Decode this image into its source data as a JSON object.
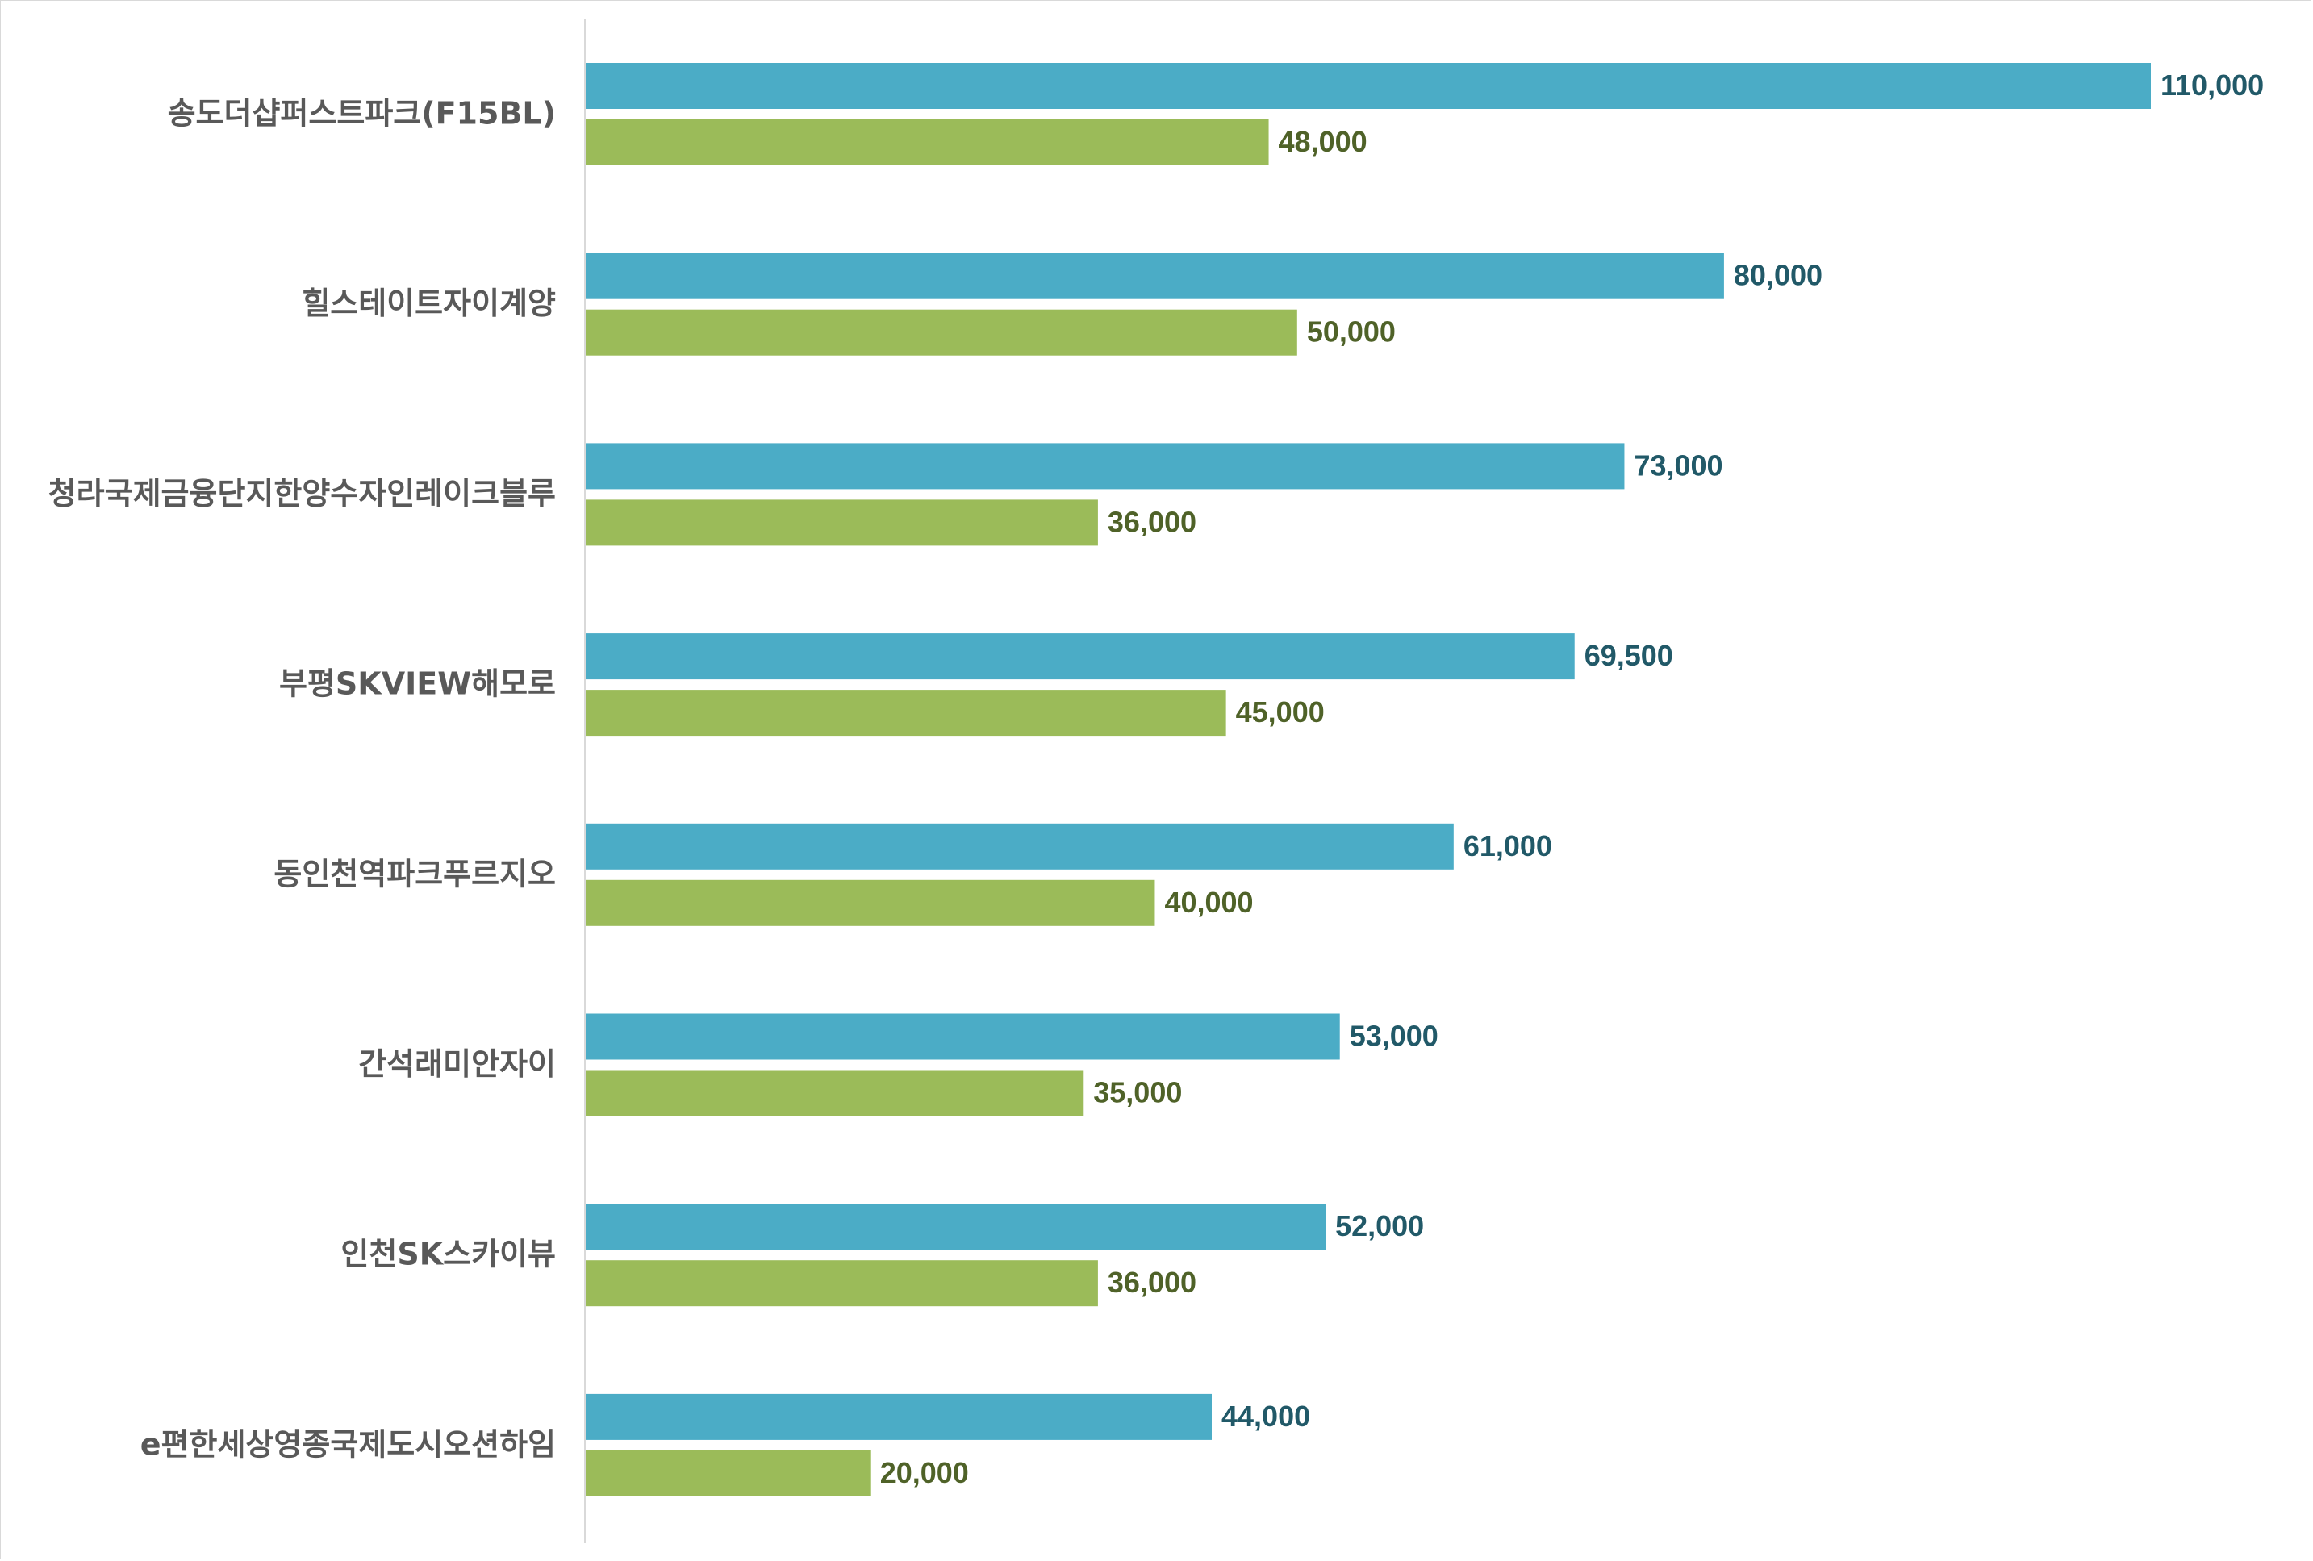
{
  "colors": {
    "series_a_bar": "#4bacc6",
    "series_b_bar": "#9bbb59",
    "series_a_label": "#215968",
    "series_b_label": "#4f6228",
    "axis": "#d9d9d9",
    "category_text": "#595959"
  },
  "chart_data": {
    "type": "bar",
    "orientation": "horizontal",
    "title": "",
    "xlabel": "",
    "ylabel": "",
    "xlim": [
      0,
      110000
    ],
    "grid": false,
    "legend": "none",
    "categories": [
      "송도더샵퍼스트파크(F15BL)",
      "힐스테이트자이계양",
      "청라국제금융단지한양수자인레이크블루",
      "부평SKVIEW해모로",
      "동인천역파크푸르지오",
      "간석래미안자이",
      "인천SK스카이뷰",
      "e편한세상영종국제도시오션하임"
    ],
    "series": [
      {
        "name": "series-1",
        "values": [
          110000,
          80000,
          73000,
          69500,
          61000,
          53000,
          52000,
          44000
        ],
        "labels": [
          "110,000",
          "80,000",
          "73,000",
          "69,500",
          "61,000",
          "53,000",
          "52,000",
          "44,000"
        ]
      },
      {
        "name": "series-2",
        "values": [
          48000,
          50000,
          36000,
          45000,
          40000,
          35000,
          36000,
          20000
        ],
        "labels": [
          "48,000",
          "50,000",
          "36,000",
          "45,000",
          "40,000",
          "35,000",
          "36,000",
          "20,000"
        ]
      }
    ]
  }
}
